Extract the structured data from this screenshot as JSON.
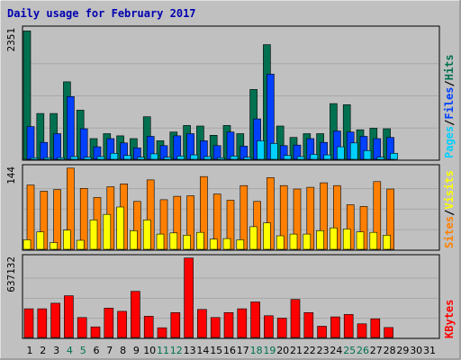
{
  "title": "Daily usage for February 2017",
  "colors": {
    "outer_bg": "#c0c0c0",
    "plot_bg": "#c0c0c0",
    "grid": "#a8a8a8",
    "title": "#0000b0",
    "hits": "#007050",
    "files": "#0040ff",
    "pages": "#00d0ff",
    "visits": "#ffff00",
    "sites": "#ff8000",
    "kbytes": "#ff0000",
    "weekend_label": "#007050",
    "weekday_label": "#000000"
  },
  "chart_data": [
    {
      "type": "bar",
      "panel": "hits-files-pages",
      "ymax_label": "2351",
      "ylim": [
        0,
        2351
      ],
      "legend": [
        "Pages",
        "/",
        "Files",
        "/",
        "Hits"
      ],
      "x": [
        1,
        2,
        3,
        4,
        5,
        6,
        7,
        8,
        9,
        10,
        11,
        12,
        13,
        14,
        15,
        16,
        17,
        18,
        19,
        20,
        21,
        22,
        23,
        24,
        25,
        26,
        27,
        28,
        29,
        30,
        31
      ],
      "series": [
        {
          "name": "Hits",
          "values": [
            2351,
            840,
            840,
            1420,
            900,
            380,
            470,
            430,
            380,
            780,
            340,
            500,
            620,
            610,
            440,
            620,
            470,
            1280,
            2100,
            610,
            400,
            470,
            470,
            1020,
            1000,
            540,
            570,
            560,
            0,
            0,
            0
          ]
        },
        {
          "name": "Files",
          "values": [
            600,
            310,
            470,
            1150,
            560,
            230,
            380,
            300,
            210,
            420,
            250,
            430,
            470,
            340,
            250,
            500,
            240,
            740,
            1560,
            250,
            260,
            380,
            310,
            520,
            500,
            420,
            380,
            400,
            0,
            0,
            0
          ]
        },
        {
          "name": "Pages",
          "values": [
            30,
            30,
            30,
            50,
            40,
            50,
            110,
            70,
            40,
            100,
            40,
            60,
            80,
            50,
            30,
            60,
            40,
            340,
            290,
            70,
            50,
            90,
            80,
            230,
            300,
            160,
            40,
            110,
            0,
            0,
            0
          ]
        }
      ]
    },
    {
      "type": "bar",
      "panel": "visits-sites",
      "ymax_label": "144",
      "ylim": [
        0,
        144
      ],
      "legend": [
        "Sites",
        "/",
        "Visits"
      ],
      "x": [
        1,
        2,
        3,
        4,
        5,
        6,
        7,
        8,
        9,
        10,
        11,
        12,
        13,
        14,
        15,
        16,
        17,
        18,
        19,
        20,
        21,
        22,
        23,
        24,
        25,
        26,
        27,
        28,
        29,
        30,
        31
      ],
      "series": [
        {
          "name": "Sites",
          "values": [
            114,
            103,
            106,
            144,
            108,
            92,
            111,
            116,
            85,
            123,
            88,
            94,
            95,
            129,
            98,
            87,
            113,
            85,
            127,
            113,
            107,
            110,
            118,
            113,
            79,
            76,
            120,
            107,
            0,
            0,
            0
          ]
        },
        {
          "name": "Visits",
          "values": [
            17,
            31,
            12,
            34,
            16,
            52,
            62,
            75,
            33,
            52,
            27,
            29,
            25,
            30,
            18,
            19,
            17,
            40,
            47,
            24,
            27,
            27,
            33,
            38,
            36,
            31,
            30,
            25,
            0,
            0,
            0
          ]
        }
      ]
    },
    {
      "type": "bar",
      "panel": "kbytes",
      "ymax_label": "637132",
      "ylim": [
        0,
        637132
      ],
      "legend": [
        "KBytes"
      ],
      "x": [
        1,
        2,
        3,
        4,
        5,
        6,
        7,
        8,
        9,
        10,
        11,
        12,
        13,
        14,
        15,
        16,
        17,
        18,
        19,
        20,
        21,
        22,
        23,
        24,
        25,
        26,
        27,
        28,
        29,
        30,
        31
      ],
      "series": [
        {
          "name": "KBytes",
          "values": [
            230000,
            230000,
            275000,
            335000,
            160000,
            85000,
            235000,
            210000,
            370000,
            170000,
            78000,
            200000,
            637132,
            225000,
            160000,
            200000,
            230000,
            285000,
            175000,
            155000,
            305000,
            200000,
            90000,
            165000,
            185000,
            110000,
            150000,
            80000,
            0,
            0,
            0
          ]
        }
      ]
    }
  ],
  "day_labels": [
    "1",
    "2",
    "3",
    "4",
    "5",
    "6",
    "7",
    "8",
    "9",
    "10",
    "11",
    "12",
    "13",
    "14",
    "15",
    "16",
    "17",
    "18",
    "19",
    "20",
    "21",
    "22",
    "23",
    "24",
    "25",
    "26",
    "27",
    "28",
    "29",
    "30",
    "31"
  ],
  "weekend_days": [
    4,
    5,
    11,
    12,
    18,
    19,
    25,
    26
  ]
}
